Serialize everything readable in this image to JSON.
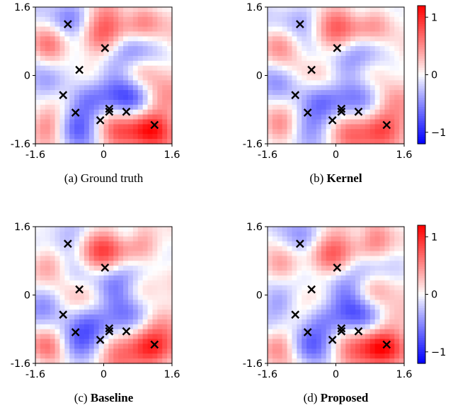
{
  "colors": {
    "negative": "#0000ff",
    "zero": "#ffffff",
    "positive": "#ff0000",
    "marker": "#000000"
  },
  "chart_data": [
    {
      "type": "heatmap",
      "caption_prefix": "(a) ",
      "caption_name": "Ground truth",
      "caption_bold": false,
      "xlim": [
        -1.6,
        1.6
      ],
      "ylim": [
        -1.6,
        1.6
      ],
      "xticks": [
        "-1.6",
        "0",
        "1.6"
      ],
      "yticks": [
        "-1.6",
        "0",
        "1.6"
      ],
      "colorbar": false,
      "smooth": false,
      "seed": 0
    },
    {
      "type": "heatmap",
      "caption_prefix": "(b) ",
      "caption_name": "Kernel",
      "caption_bold": true,
      "xlim": [
        -1.6,
        1.6
      ],
      "ylim": [
        -1.6,
        1.6
      ],
      "xticks": [
        "-1.6",
        "0",
        "1.6"
      ],
      "yticks": [
        "-1.6",
        "0",
        "1.6"
      ],
      "colorbar": true,
      "colorbar_ticks": [
        "1",
        "0",
        "−1"
      ],
      "colorbar_range": [
        -1.2,
        1.2
      ],
      "smooth": true,
      "seed": 1
    },
    {
      "type": "heatmap",
      "caption_prefix": "(c) ",
      "caption_name": "Baseline",
      "caption_bold": true,
      "xlim": [
        -1.6,
        1.6
      ],
      "ylim": [
        -1.6,
        1.6
      ],
      "xticks": [
        "-1.6",
        "0",
        "1.6"
      ],
      "yticks": [
        "-1.6",
        "0",
        "1.6"
      ],
      "colorbar": false,
      "smooth": false,
      "seed": 2
    },
    {
      "type": "heatmap",
      "caption_prefix": "(d) ",
      "caption_name": "Proposed",
      "caption_bold": true,
      "xlim": [
        -1.6,
        1.6
      ],
      "ylim": [
        -1.6,
        1.6
      ],
      "xticks": [
        "-1.6",
        "0",
        "1.6"
      ],
      "yticks": [
        "-1.6",
        "0",
        "1.6"
      ],
      "colorbar": true,
      "colorbar_ticks": [
        "1",
        "0",
        "−1"
      ],
      "colorbar_range": [
        -1.2,
        1.2
      ],
      "smooth": false,
      "seed": 3
    }
  ],
  "markers": [
    {
      "x": -0.84,
      "y": 1.2
    },
    {
      "x": 0.03,
      "y": 0.64
    },
    {
      "x": -0.57,
      "y": 0.13
    },
    {
      "x": -0.95,
      "y": -0.46
    },
    {
      "x": -0.66,
      "y": -0.87
    },
    {
      "x": 0.13,
      "y": -0.78
    },
    {
      "x": 0.13,
      "y": -0.85
    },
    {
      "x": -0.08,
      "y": -1.05
    },
    {
      "x": 0.53,
      "y": -0.85
    },
    {
      "x": 1.19,
      "y": -1.16
    }
  ]
}
